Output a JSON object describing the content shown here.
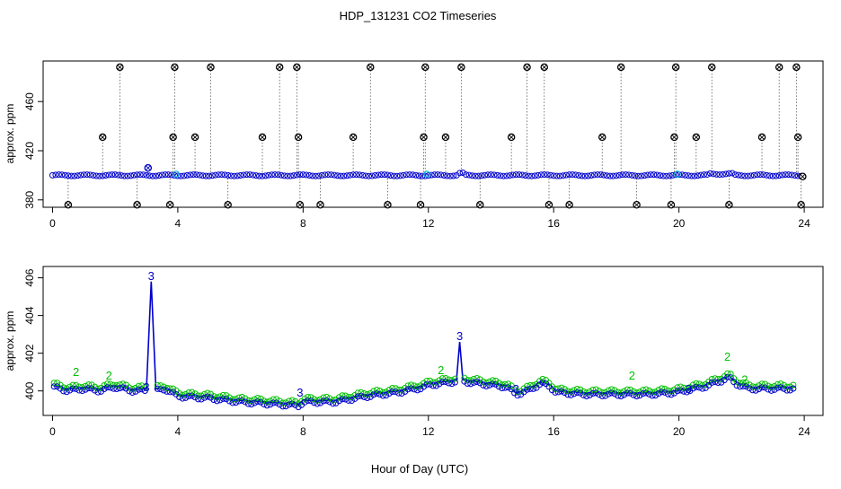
{
  "figure": {
    "title": "HDP_131231  CO2 Timeseries",
    "xlabel": "Hour of Day (UTC)"
  },
  "chart_data": [
    {
      "type": "scatter",
      "panel": "top",
      "xlabel": "",
      "ylabel": "approx. ppm",
      "xlim": [
        -0.3,
        24.6
      ],
      "ylim": [
        374,
        493
      ],
      "xticks": [
        0,
        4,
        8,
        12,
        16,
        20,
        24
      ],
      "yticks": [
        380,
        420,
        460
      ],
      "baseline": 400,
      "grid": false,
      "colors": {
        "outlier": "#000000",
        "baseline": "#0000cc",
        "accent": "#00b3d6"
      },
      "series": [
        {
          "marker": "circle-cross",
          "color": "#000000",
          "points": [
            [
              0.5,
              376
            ],
            [
              1.6,
              431
            ],
            [
              2.15,
              488
            ],
            [
              2.7,
              376
            ],
            [
              3.05,
              406
            ],
            [
              3.75,
              376
            ],
            [
              3.85,
              431
            ],
            [
              3.9,
              488
            ],
            [
              4.55,
              431
            ],
            [
              5.05,
              488
            ],
            [
              5.6,
              376
            ],
            [
              6.7,
              431
            ],
            [
              7.25,
              488
            ],
            [
              7.8,
              488
            ],
            [
              7.85,
              431
            ],
            [
              7.9,
              376
            ],
            [
              8.55,
              376
            ],
            [
              9.6,
              431
            ],
            [
              10.15,
              488
            ],
            [
              10.7,
              376
            ],
            [
              11.75,
              376
            ],
            [
              11.85,
              431
            ],
            [
              11.9,
              488
            ],
            [
              12.55,
              431
            ],
            [
              13.05,
              488
            ],
            [
              13.65,
              376
            ],
            [
              14.65,
              431
            ],
            [
              15.15,
              488
            ],
            [
              15.7,
              488
            ],
            [
              15.85,
              376
            ],
            [
              16.5,
              376
            ],
            [
              17.55,
              431
            ],
            [
              18.15,
              488
            ],
            [
              18.65,
              376
            ],
            [
              19.75,
              376
            ],
            [
              19.85,
              431
            ],
            [
              19.9,
              488
            ],
            [
              20.55,
              431
            ],
            [
              21.05,
              488
            ],
            [
              21.6,
              376
            ],
            [
              22.65,
              431
            ],
            [
              23.2,
              488
            ],
            [
              23.75,
              488
            ],
            [
              23.8,
              431
            ],
            [
              23.9,
              376
            ],
            [
              23.95,
              399
            ]
          ]
        }
      ]
    },
    {
      "type": "line",
      "panel": "bottom",
      "xlabel": "",
      "ylabel": "approx. ppm",
      "xlim": [
        -0.3,
        24.6
      ],
      "ylim": [
        398.7,
        406.6
      ],
      "xticks": [
        0,
        4,
        8,
        12,
        16,
        20,
        24
      ],
      "yticks": [
        400,
        402,
        404,
        406
      ],
      "grid": false,
      "colors": {
        "line": "#0000cc",
        "markers": "#0000cc",
        "flag2": "#00c000",
        "flag3": "#0000cc"
      },
      "series": [
        {
          "marker": "circle",
          "color": "#0000cc",
          "points": [
            [
              0,
              400.3
            ],
            [
              0.5,
              400.1
            ],
            [
              1.0,
              400.2
            ],
            [
              1.5,
              400.1
            ],
            [
              2.0,
              400.3
            ],
            [
              2.5,
              400.1
            ],
            [
              3.0,
              400.1
            ],
            [
              3.15,
              405.8
            ],
            [
              3.3,
              400.1
            ],
            [
              3.6,
              400.2
            ],
            [
              4.0,
              399.8
            ],
            [
              5.0,
              399.7
            ],
            [
              6.0,
              399.5
            ],
            [
              7.0,
              399.4
            ],
            [
              7.85,
              399.3
            ],
            [
              8.0,
              399.5
            ],
            [
              9.0,
              399.5
            ],
            [
              10.0,
              399.8
            ],
            [
              11.0,
              400.0
            ],
            [
              11.9,
              400.3
            ],
            [
              12.0,
              400.4
            ],
            [
              12.5,
              400.5
            ],
            [
              12.9,
              400.6
            ],
            [
              13.0,
              402.6
            ],
            [
              13.1,
              400.6
            ],
            [
              13.5,
              400.5
            ],
            [
              14.0,
              400.4
            ],
            [
              14.5,
              400.3
            ],
            [
              14.8,
              399.9
            ],
            [
              15.2,
              400.1
            ],
            [
              15.6,
              400.5
            ],
            [
              15.9,
              400.3
            ],
            [
              16.1,
              400.0
            ],
            [
              17.0,
              399.9
            ],
            [
              18.0,
              399.9
            ],
            [
              19.0,
              399.9
            ],
            [
              19.9,
              400.0
            ],
            [
              20.2,
              400.1
            ],
            [
              20.8,
              400.3
            ],
            [
              21.3,
              400.6
            ],
            [
              21.6,
              400.8
            ],
            [
              21.8,
              400.5
            ],
            [
              22.2,
              400.2
            ],
            [
              23.0,
              400.2
            ],
            [
              23.7,
              400.2
            ]
          ]
        }
      ],
      "annotations": [
        {
          "label": "3",
          "x": 3.15,
          "y": 405.8,
          "color": "#0000cc"
        },
        {
          "label": "3",
          "x": 13.0,
          "y": 402.6,
          "color": "#0000cc"
        },
        {
          "label": "3",
          "x": 3.0,
          "y": 399.9,
          "color": "#0000cc"
        },
        {
          "label": "3",
          "x": 7.9,
          "y": 399.6,
          "color": "#0000cc"
        },
        {
          "label": "3",
          "x": 14.8,
          "y": 399.8,
          "color": "#0000cc"
        },
        {
          "label": "3",
          "x": 20.3,
          "y": 399.8,
          "color": "#0000cc"
        },
        {
          "label": "2",
          "x": 0.75,
          "y": 400.7,
          "color": "#00c000"
        },
        {
          "label": "2",
          "x": 1.8,
          "y": 400.5,
          "color": "#00c000"
        },
        {
          "label": "2",
          "x": 12.4,
          "y": 400.8,
          "color": "#00c000"
        },
        {
          "label": "2",
          "x": 18.5,
          "y": 400.5,
          "color": "#00c000"
        },
        {
          "label": "2",
          "x": 21.55,
          "y": 401.5,
          "color": "#00c000"
        },
        {
          "label": "2",
          "x": 22.1,
          "y": 400.3,
          "color": "#00c000"
        }
      ]
    }
  ]
}
